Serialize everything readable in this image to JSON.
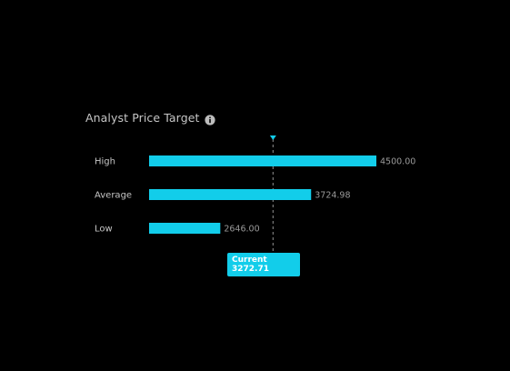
{
  "widget": {
    "title": "Analyst Price Target",
    "info_icon": "info-icon"
  },
  "colors": {
    "background": "#000000",
    "bar": "#12cdea",
    "current_line": "#7a7a7a",
    "current_marker": "#12cdea",
    "label_text": "#c6c6c6",
    "value_text": "#9a9a9a"
  },
  "chart_data": {
    "type": "bar",
    "orientation": "horizontal",
    "categories": [
      "High",
      "Average",
      "Low"
    ],
    "values": [
      4500.0,
      3724.98,
      2646.0
    ],
    "value_labels": [
      "4500.00",
      "3724.98",
      "2646.00"
    ],
    "current": {
      "label": "Current",
      "value": 3272.71,
      "value_label": "3272.71"
    },
    "xlim": [
      1800,
      4500
    ],
    "title": "Analyst Price Target",
    "xlabel": "",
    "ylabel": "",
    "grid": false
  }
}
